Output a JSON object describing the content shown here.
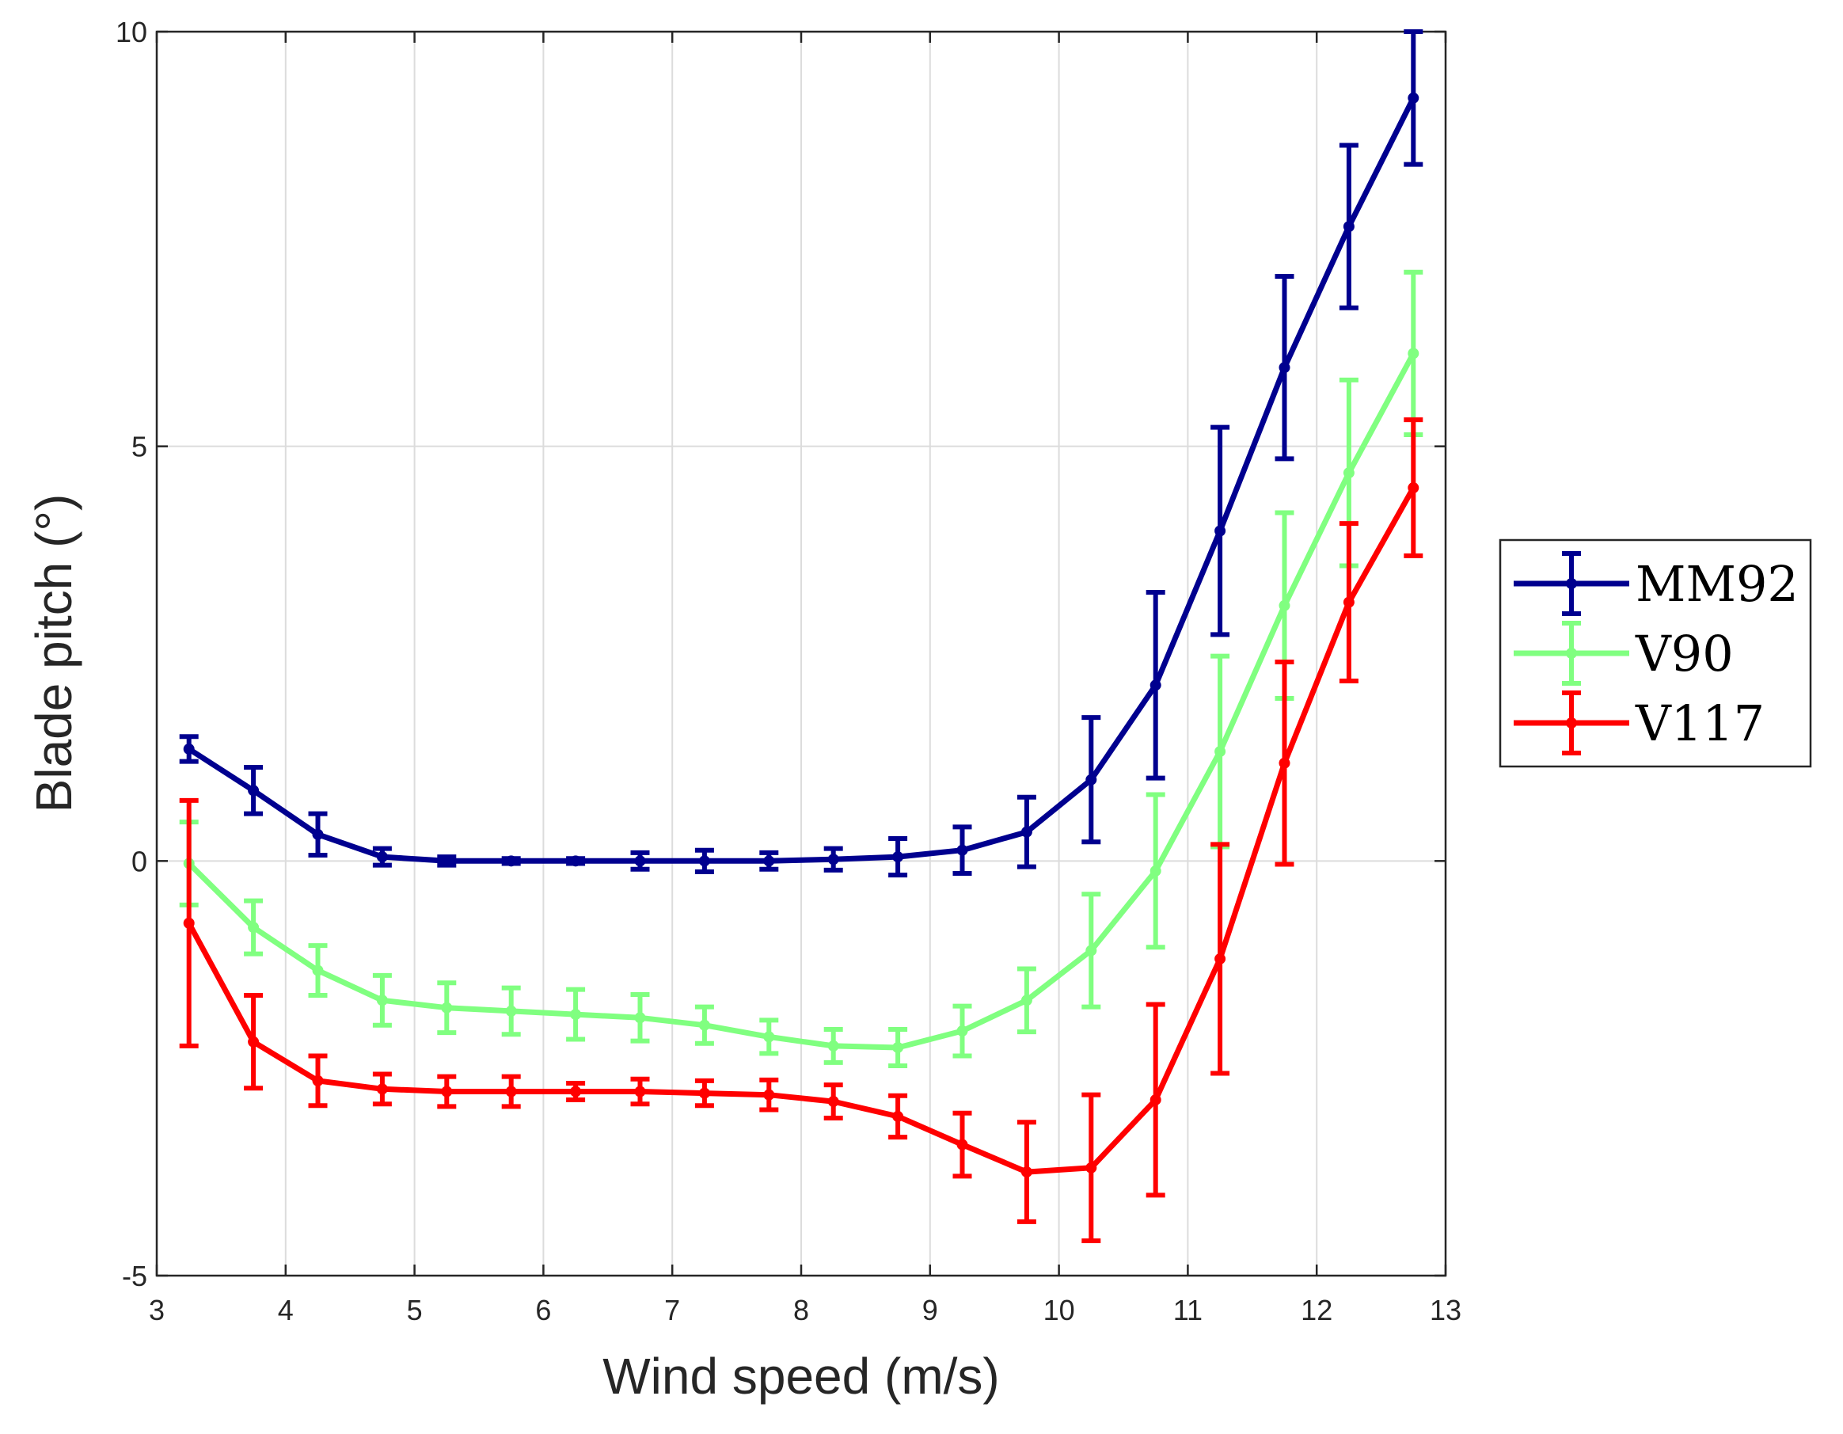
{
  "chart_data": {
    "type": "line",
    "error_bars": true,
    "xlabel": "Wind speed (m/s)",
    "ylabel": "Blade pitch (°)",
    "xlim": [
      3,
      13
    ],
    "ylim": [
      -5,
      10
    ],
    "xticks": [
      "3",
      "4",
      "5",
      "6",
      "7",
      "8",
      "9",
      "10",
      "11",
      "12",
      "13"
    ],
    "yticks": [
      "10",
      "5",
      "0",
      "-5"
    ],
    "xtick_values": [
      3,
      4,
      5,
      6,
      7,
      8,
      9,
      10,
      11,
      12,
      13
    ],
    "ytick_values": [
      10,
      5,
      0,
      -5
    ],
    "grid": true,
    "legend_position": "outside-right",
    "x": [
      3.25,
      3.75,
      4.25,
      4.75,
      5.25,
      5.75,
      6.25,
      6.75,
      7.25,
      7.75,
      8.25,
      8.75,
      9.25,
      9.75,
      10.25,
      10.75,
      11.25,
      11.75,
      12.25,
      12.75
    ],
    "series": [
      {
        "name": "MM92",
        "color": "#00008f",
        "values": [
          1.35,
          0.85,
          0.32,
          0.05,
          0.0,
          0.0,
          0.0,
          0.0,
          0.0,
          0.0,
          0.02,
          0.05,
          0.13,
          0.35,
          0.98,
          2.12,
          3.98,
          5.95,
          7.65,
          9.2
        ],
        "errors": [
          0.15,
          0.28,
          0.25,
          0.1,
          0.05,
          0.03,
          0.03,
          0.1,
          0.13,
          0.1,
          0.13,
          0.22,
          0.28,
          0.42,
          0.75,
          1.12,
          1.25,
          1.1,
          0.98,
          0.8
        ]
      },
      {
        "name": "V90",
        "color": "#80ff80",
        "values": [
          -0.03,
          -0.8,
          -1.32,
          -1.68,
          -1.77,
          -1.81,
          -1.85,
          -1.89,
          -1.98,
          -2.12,
          -2.23,
          -2.25,
          -2.05,
          -1.68,
          -1.08,
          -0.12,
          1.32,
          3.08,
          4.68,
          6.12
        ],
        "errors": [
          0.5,
          0.32,
          0.3,
          0.3,
          0.3,
          0.28,
          0.3,
          0.28,
          0.22,
          0.2,
          0.2,
          0.22,
          0.3,
          0.38,
          0.68,
          0.92,
          1.15,
          1.12,
          1.12,
          0.98
        ]
      },
      {
        "name": "V117",
        "color": "#ff0000",
        "values": [
          -0.75,
          -2.18,
          -2.65,
          -2.75,
          -2.78,
          -2.78,
          -2.78,
          -2.78,
          -2.8,
          -2.82,
          -2.9,
          -3.08,
          -3.42,
          -3.75,
          -3.7,
          -2.88,
          -1.18,
          1.18,
          3.12,
          4.5
        ],
        "errors": [
          1.48,
          0.56,
          0.3,
          0.18,
          0.18,
          0.18,
          0.1,
          0.15,
          0.15,
          0.18,
          0.2,
          0.25,
          0.38,
          0.6,
          0.88,
          1.15,
          1.38,
          1.22,
          0.95,
          0.82
        ]
      }
    ]
  }
}
